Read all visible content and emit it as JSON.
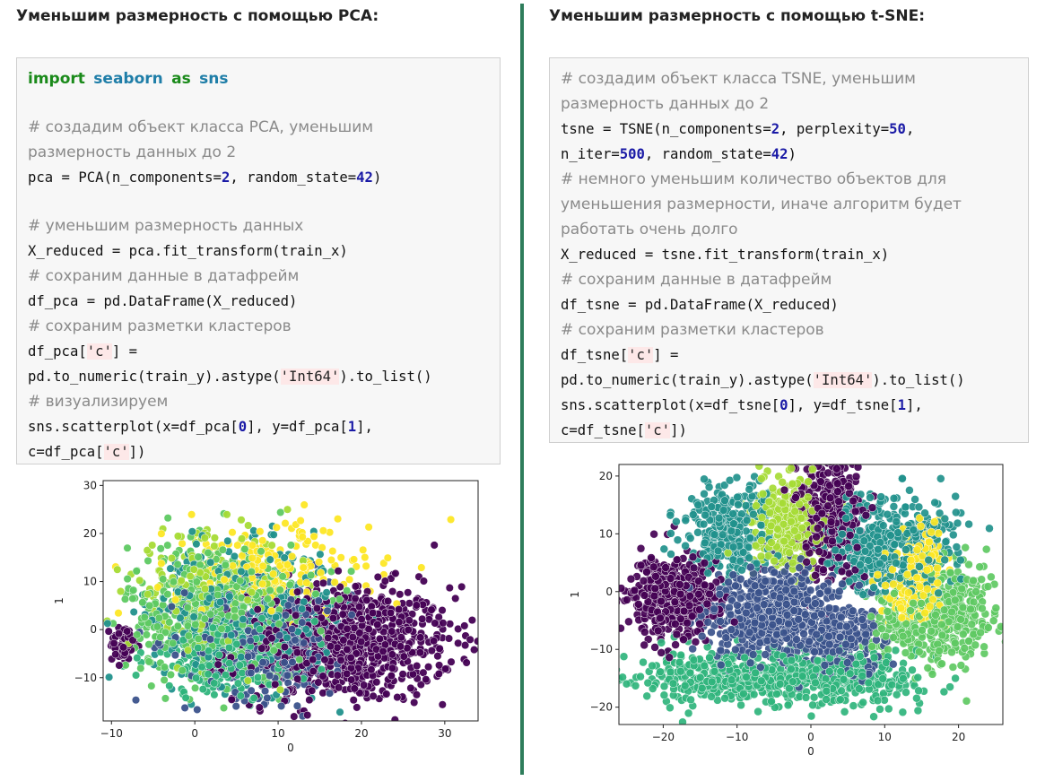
{
  "left": {
    "heading": "Уменьшим размерность с помощью PCA:",
    "code": {
      "import_kw": "import",
      "import_mod": "seaborn",
      "import_as": "as",
      "import_alias": "sns",
      "c1a": "# создадим объект класса PCA, уменьшим",
      "c1b": "размерность данных до 2",
      "pca_pre": "pca = PCA(n_components=",
      "pca_n": "2",
      "pca_mid": ", random_state=",
      "pca_rs": "42",
      "pca_post": ")",
      "c2": "# уменьшим размерность данных",
      "l_fit": "X_reduced = pca.fit_transform(train_x)",
      "c3": "# сохраним данные в датафрейм",
      "l_df": "df_pca = pd.DataFrame(X_reduced)",
      "c4": "# сохраним разметки кластеров",
      "dfc_pre": "df_pca[",
      "dfc_str": "'c'",
      "dfc_post": "] =",
      "num_pre": "pd.to_numeric(train_y).astype(",
      "num_str": "'Int64'",
      "num_post": ").to_list()",
      "c5": "# визуализируем",
      "sc_a": "sns.scatterplot(x=df_pca[",
      "sc_n0": "0",
      "sc_b": "], y=df_pca[",
      "sc_n1": "1",
      "sc_c": "],",
      "sc2_pre": "c=df_pca[",
      "sc2_str": "'c'",
      "sc2_post": "])"
    }
  },
  "right": {
    "heading": "Уменьшим размерность с помощью t-SNE:",
    "code": {
      "c1a": "# создадим объект класса TSNE, уменьшим",
      "c1b": "размерность данных до 2",
      "t_pre": "tsne = TSNE(n_components=",
      "t_n": "2",
      "t_mid": ", perplexity=",
      "t_p": "50",
      "t_post": ",",
      "t2_pre": "n_iter=",
      "t2_n": "500",
      "t2_mid": ", random_state=",
      "t2_rs": "42",
      "t2_post": ")",
      "c2a": "# немного уменьшим количество объектов для",
      "c2b": "уменьшения размерности, иначе алгоритм будет",
      "c2c": "работать очень долго",
      "l_fit": "X_reduced = tsne.fit_transform(train_x)",
      "c3": "# сохраним данные в датафрейм",
      "l_df": "df_tsne = pd.DataFrame(X_reduced)",
      "c4": "# сохраним разметки кластеров",
      "dfc_pre": "df_tsne[",
      "dfc_str": "'c'",
      "dfc_post": "] =",
      "num_pre": "pd.to_numeric(train_y).astype(",
      "num_str": "'Int64'",
      "num_post": ").to_list()",
      "sc_a": "sns.scatterplot(x=df_tsne[",
      "sc_n0": "0",
      "sc_b": "], y=df_tsne[",
      "sc_n1": "1",
      "sc_c": "],",
      "sc2_pre": "c=df_tsne[",
      "sc2_str": "'c'",
      "sc2_post": "])"
    }
  },
  "palette": [
    "#440154",
    "#3b528b",
    "#21918c",
    "#5ec962",
    "#fde725",
    "#2fb47c",
    "#a6db35"
  ],
  "chart_data": [
    {
      "type": "scatter",
      "title": "",
      "xlabel": "0",
      "ylabel": "1",
      "xlim": [
        -11,
        34
      ],
      "ylim": [
        -19,
        31
      ],
      "xticks": [
        -10,
        0,
        10,
        20,
        30
      ],
      "yticks": [
        -10,
        0,
        10,
        20,
        30
      ],
      "xtick_labels": [
        "−10",
        "0",
        "10",
        "20",
        "30"
      ],
      "ytick_labels": [
        "−10",
        "0",
        "10",
        "20",
        "30"
      ],
      "grid": false,
      "clusters": [
        {
          "class": 0,
          "cx": 18,
          "cy": -3,
          "sx": 6.5,
          "sy": 6,
          "n": 900
        },
        {
          "class": 0,
          "cx": -8.5,
          "cy": -3,
          "sx": 0.8,
          "sy": 2,
          "n": 60
        },
        {
          "class": 1,
          "cx": 9,
          "cy": -2,
          "sx": 5,
          "sy": 6,
          "n": 350
        },
        {
          "class": 2,
          "cx": 6,
          "cy": 3,
          "sx": 5.5,
          "sy": 7,
          "n": 450
        },
        {
          "class": 3,
          "cx": 3,
          "cy": 4,
          "sx": 5.5,
          "sy": 7,
          "n": 550
        },
        {
          "class": 4,
          "cx": 9,
          "cy": 12,
          "sx": 6,
          "sy": 5,
          "n": 220
        },
        {
          "class": 5,
          "cx": 4,
          "cy": -6,
          "sx": 5,
          "sy": 4,
          "n": 250
        },
        {
          "class": 6,
          "cx": 2,
          "cy": 8,
          "sx": 5,
          "sy": 6,
          "n": 200
        }
      ]
    },
    {
      "type": "scatter",
      "title": "",
      "xlabel": "0",
      "ylabel": "1",
      "xlim": [
        -26,
        26
      ],
      "ylim": [
        -23,
        22
      ],
      "xticks": [
        -20,
        -10,
        0,
        10,
        20
      ],
      "yticks": [
        -20,
        -10,
        0,
        10,
        20
      ],
      "xtick_labels": [
        "−20",
        "−10",
        "0",
        "10",
        "20"
      ],
      "ytick_labels": [
        "−20",
        "−10",
        "0",
        "10",
        "20"
      ],
      "grid": false,
      "clusters": [
        {
          "class": 0,
          "cx": -19,
          "cy": -1,
          "sx": 3,
          "sy": 3.5,
          "n": 450
        },
        {
          "class": 0,
          "cx": 2.5,
          "cy": 13,
          "sx": 2.2,
          "sy": 5.5,
          "n": 380
        },
        {
          "class": 1,
          "cx": -5,
          "cy": -4,
          "sx": 4.5,
          "sy": 4,
          "n": 600
        },
        {
          "class": 1,
          "cx": 4,
          "cy": -9,
          "sx": 3,
          "sy": 3,
          "n": 220
        },
        {
          "class": 2,
          "cx": -11,
          "cy": 11,
          "sx": 3,
          "sy": 4,
          "n": 300
        },
        {
          "class": 2,
          "cx": 8,
          "cy": 8,
          "sx": 3,
          "sy": 4,
          "n": 300
        },
        {
          "class": 2,
          "cx": 15,
          "cy": 8,
          "sx": 2.5,
          "sy": 4,
          "n": 180
        },
        {
          "class": 3,
          "cx": 19,
          "cy": -4,
          "sx": 3,
          "sy": 4.5,
          "n": 350
        },
        {
          "class": 3,
          "cx": 12,
          "cy": -6,
          "sx": 2,
          "sy": 3,
          "n": 120
        },
        {
          "class": 4,
          "cx": 14,
          "cy": 1,
          "sx": 2,
          "sy": 3.5,
          "n": 170
        },
        {
          "class": 4,
          "cx": 16,
          "cy": 8,
          "sx": 1,
          "sy": 2.5,
          "n": 60
        },
        {
          "class": 5,
          "cx": -10,
          "cy": -15,
          "sx": 7,
          "sy": 2.5,
          "n": 450
        },
        {
          "class": 5,
          "cx": 6,
          "cy": -15,
          "sx": 4,
          "sy": 2.5,
          "n": 250
        },
        {
          "class": 6,
          "cx": -3,
          "cy": 12,
          "sx": 2.5,
          "sy": 4,
          "n": 330
        }
      ]
    }
  ]
}
